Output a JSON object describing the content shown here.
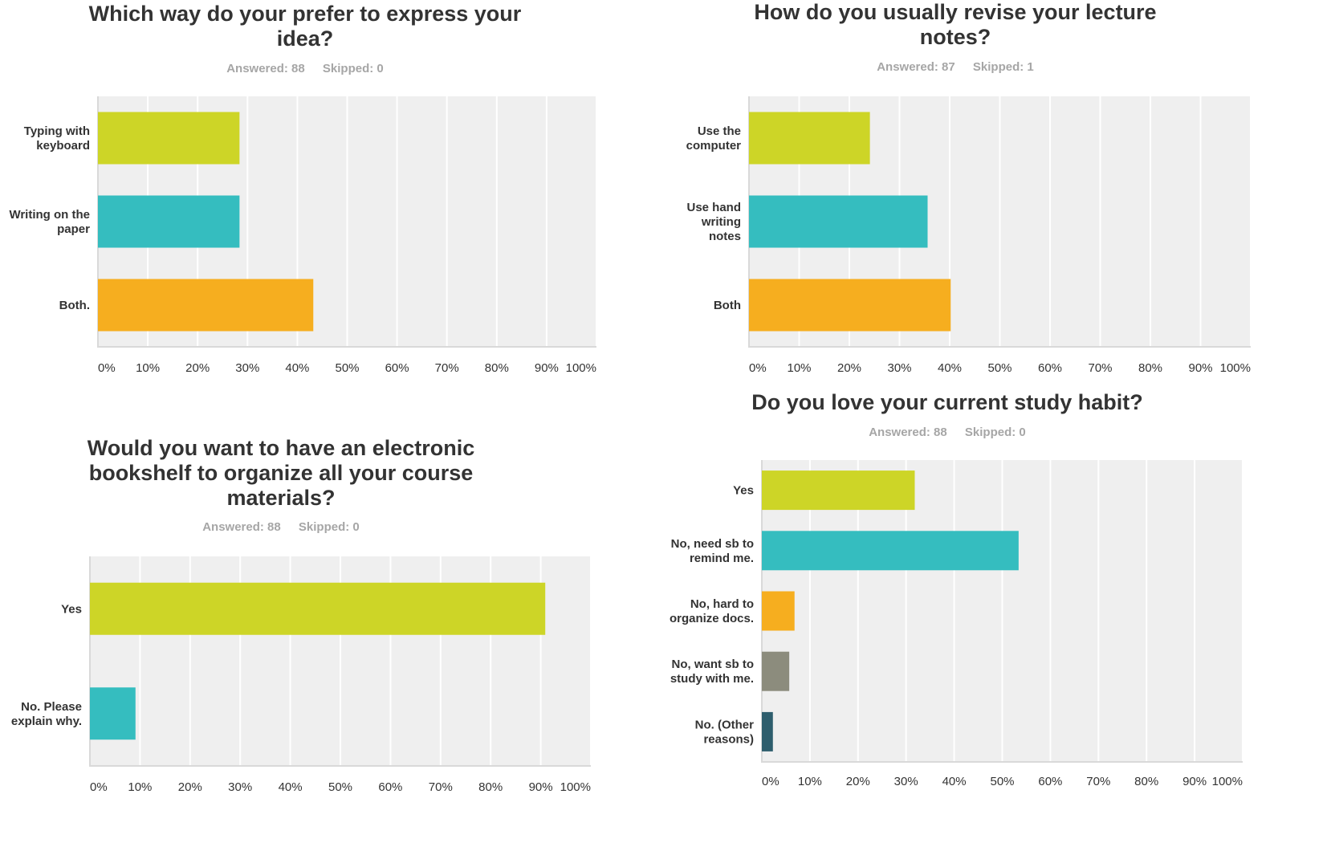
{
  "colors": {
    "plot_background": "#efefef",
    "gridline": "#ffffff",
    "axis": "#d9d9d9",
    "lime": "#cdd527",
    "teal": "#35bdbf",
    "orange": "#f6ae1f",
    "gray": "#8c8c7d",
    "dark_teal": "#2e5e6d"
  },
  "chart_data": [
    {
      "type": "bar",
      "orientation": "horizontal",
      "title": "Which way do your prefer to express your idea?",
      "answered": "Answered: 88",
      "skipped": "Skipped: 0",
      "categories": [
        "Typing with keyboard",
        "Writing on the paper",
        "Both."
      ],
      "values": [
        28.4,
        28.4,
        43.2
      ],
      "bar_colors": [
        "#cdd527",
        "#35bdbf",
        "#f6ae1f"
      ],
      "xlim": [
        0,
        100
      ],
      "ticks": [
        "0%",
        "10%",
        "20%",
        "30%",
        "40%",
        "50%",
        "60%",
        "70%",
        "80%",
        "90%",
        "100%"
      ],
      "grid": true
    },
    {
      "type": "bar",
      "orientation": "horizontal",
      "title": "How do you usually revise your lecture notes?",
      "answered": "Answered: 87",
      "skipped": "Skipped: 1",
      "categories": [
        "Use the computer",
        "Use hand writing notes",
        "Both"
      ],
      "values": [
        24.1,
        35.6,
        40.2
      ],
      "bar_colors": [
        "#cdd527",
        "#35bdbf",
        "#f6ae1f"
      ],
      "xlim": [
        0,
        100
      ],
      "ticks": [
        "0%",
        "10%",
        "20%",
        "30%",
        "40%",
        "50%",
        "60%",
        "70%",
        "80%",
        "90%",
        "100%"
      ],
      "grid": true
    },
    {
      "type": "bar",
      "orientation": "horizontal",
      "title": "Would you want to have an electronic bookshelf to organize all your course materials?",
      "answered": "Answered: 88",
      "skipped": "Skipped: 0",
      "categories": [
        "Yes",
        "No. Please explain why."
      ],
      "values": [
        90.9,
        9.1
      ],
      "bar_colors": [
        "#cdd527",
        "#35bdbf"
      ],
      "xlim": [
        0,
        100
      ],
      "ticks": [
        "0%",
        "10%",
        "20%",
        "30%",
        "40%",
        "50%",
        "60%",
        "70%",
        "80%",
        "90%",
        "100%"
      ],
      "grid": true
    },
    {
      "type": "bar",
      "orientation": "horizontal",
      "title": "Do you love your current study habit?",
      "answered": "Answered: 88",
      "skipped": "Skipped: 0",
      "categories": [
        "Yes",
        "No, need sb to remind me.",
        "No, hard to organize docs.",
        "No, want sb to study with me.",
        "No. (Other reasons)"
      ],
      "values": [
        31.8,
        53.4,
        6.8,
        5.7,
        2.3
      ],
      "bar_colors": [
        "#cdd527",
        "#35bdbf",
        "#f6ae1f",
        "#8c8c7d",
        "#2e5e6d"
      ],
      "xlim": [
        0,
        100
      ],
      "ticks": [
        "0%",
        "10%",
        "20%",
        "30%",
        "40%",
        "50%",
        "60%",
        "70%",
        "80%",
        "90%",
        "100%"
      ],
      "grid": true
    }
  ]
}
